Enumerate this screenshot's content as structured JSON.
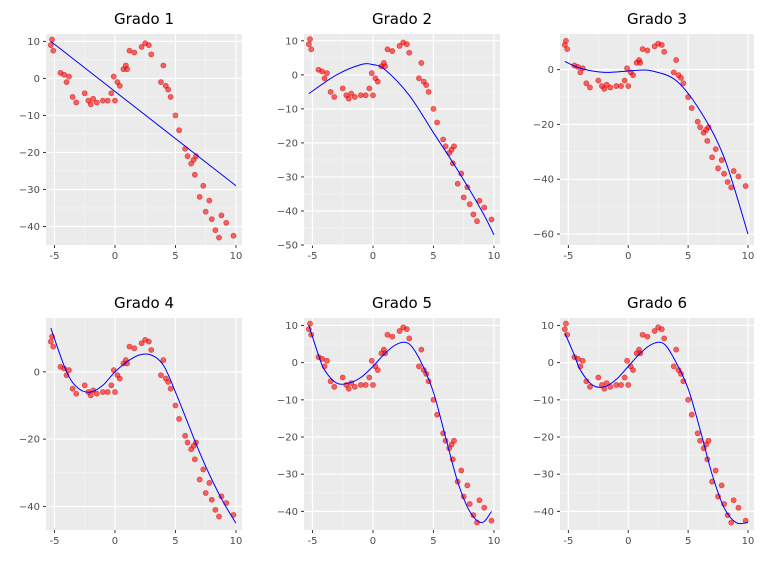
{
  "colors": {
    "points": "#ff0000",
    "fit_line": "#0000ff",
    "panel_background": "#ebebeb",
    "grid": "#ffffff"
  },
  "chart_data": [
    {
      "type": "scatter",
      "title": "Grado 1",
      "xlim": [
        -5.7,
        10.5
      ],
      "ylim": [
        -45,
        12
      ],
      "x_ticks": [
        -5,
        0,
        5,
        10
      ],
      "y_ticks": [
        -40,
        -30,
        -20,
        -10,
        0,
        10
      ],
      "points_shared": true,
      "fit": {
        "degree": 1,
        "x": [
          -5.3,
          10
        ],
        "y": [
          10,
          -29
        ]
      }
    },
    {
      "type": "scatter",
      "title": "Grado 2",
      "xlim": [
        -5.7,
        10.5
      ],
      "ylim": [
        -50,
        12
      ],
      "x_ticks": [
        -5,
        0,
        5,
        10
      ],
      "y_ticks": [
        -50,
        -40,
        -30,
        -20,
        -10,
        0,
        10
      ],
      "points_shared": true,
      "fit": {
        "degree": 2,
        "x": [
          -5.3,
          -3,
          -1,
          0,
          1,
          3,
          5,
          7,
          9,
          10
        ],
        "y": [
          -5.5,
          0,
          3,
          3,
          1.5,
          -6,
          -17,
          -28,
          -40,
          -47
        ]
      }
    },
    {
      "type": "scatter",
      "title": "Grado 3",
      "xlim": [
        -5.7,
        10.5
      ],
      "ylim": [
        -64,
        13
      ],
      "x_ticks": [
        -5,
        0,
        5,
        10
      ],
      "y_ticks": [
        -60,
        -40,
        -20,
        0
      ],
      "points_shared": true,
      "fit": {
        "degree": 3,
        "x": [
          -5.3,
          -4,
          -2,
          0,
          1,
          2,
          4,
          6,
          8,
          10
        ],
        "y": [
          3,
          0.5,
          -1,
          -0.5,
          -0.2,
          -0.5,
          -4,
          -15,
          -32,
          -60
        ]
      }
    },
    {
      "type": "scatter",
      "title": "Grado 4",
      "xlim": [
        -5.7,
        10.5
      ],
      "ylim": [
        -47,
        16
      ],
      "x_ticks": [
        -5,
        0,
        5,
        10
      ],
      "y_ticks": [
        -40,
        -20,
        0
      ],
      "points_shared": true,
      "fit": {
        "degree": 4,
        "x": [
          -5.3,
          -4,
          -3,
          -2,
          -1,
          0,
          1,
          2,
          3,
          4,
          5,
          6,
          7,
          8,
          9,
          10
        ],
        "y": [
          13,
          0,
          -5,
          -6,
          -4,
          0,
          3,
          5,
          5,
          2,
          -6,
          -15,
          -24,
          -32,
          -39,
          -45
        ]
      }
    },
    {
      "type": "scatter",
      "title": "Grado 5",
      "xlim": [
        -5.7,
        10.5
      ],
      "ylim": [
        -45,
        12
      ],
      "x_ticks": [
        -5,
        0,
        5,
        10
      ],
      "y_ticks": [
        -40,
        -30,
        -20,
        -10,
        0,
        10
      ],
      "points_shared": true,
      "fit": {
        "degree": 5,
        "x": [
          -5.3,
          -4.5,
          -4,
          -3,
          -2,
          -1,
          0,
          1,
          2,
          3,
          4,
          5,
          6,
          7,
          8,
          9,
          9.8
        ],
        "y": [
          10,
          2,
          -2,
          -5.5,
          -5.5,
          -4,
          -1,
          2.5,
          5,
          5,
          0,
          -8,
          -20,
          -32,
          -40,
          -43,
          -40
        ]
      }
    },
    {
      "type": "scatter",
      "title": "Grado 6",
      "xlim": [
        -5.7,
        10.5
      ],
      "ylim": [
        -45,
        12
      ],
      "x_ticks": [
        -5,
        0,
        5,
        10
      ],
      "y_ticks": [
        -40,
        -30,
        -20,
        -10,
        0,
        10
      ],
      "points_shared": true,
      "fit": {
        "degree": 6,
        "x": [
          -5.3,
          -4.5,
          -4,
          -3,
          -2,
          -1,
          0,
          1,
          2,
          3,
          4,
          5,
          6,
          7,
          8,
          9,
          10
        ],
        "y": [
          8,
          2,
          -2,
          -6,
          -6.5,
          -4.5,
          -1,
          2.5,
          5,
          5,
          0,
          -7,
          -18,
          -30,
          -39,
          -43,
          -43
        ]
      }
    }
  ],
  "points": {
    "x": [
      -5.3,
      -5.2,
      -5.1,
      -4.5,
      -4.2,
      -4.0,
      -3.8,
      -3.5,
      -3.2,
      -2.5,
      -2.2,
      -2.0,
      -1.8,
      -1.5,
      -1.0,
      -0.6,
      -0.3,
      -0.1,
      0.0,
      0.2,
      0.4,
      0.7,
      0.9,
      1.0,
      1.2,
      1.6,
      2.2,
      2.5,
      2.8,
      3.0,
      3.8,
      4.0,
      4.2,
      4.4,
      4.6,
      5.0,
      5.3,
      5.8,
      6.0,
      6.3,
      6.5,
      6.6,
      6.7,
      7.0,
      7.3,
      7.5,
      7.8,
      8.0,
      8.3,
      8.6,
      8.8,
      9.2,
      9.8
    ],
    "y": [
      9,
      10.5,
      7.5,
      1.5,
      1,
      -1,
      0.5,
      -5,
      -6.5,
      -4,
      -6,
      -7,
      -5.5,
      -6.5,
      -6,
      -6,
      -4,
      0.5,
      -6,
      -1,
      -2,
      2.5,
      3.5,
      2.5,
      7.5,
      7,
      8.5,
      9.5,
      9,
      6.5,
      -1,
      3.5,
      -2,
      -3,
      -5,
      -10,
      -14,
      -19,
      -21,
      -23,
      -22,
      -26,
      -21,
      -32,
      -29,
      -36,
      -33,
      -38,
      -41,
      -43,
      -37,
      -39,
      -42.5
    ]
  }
}
